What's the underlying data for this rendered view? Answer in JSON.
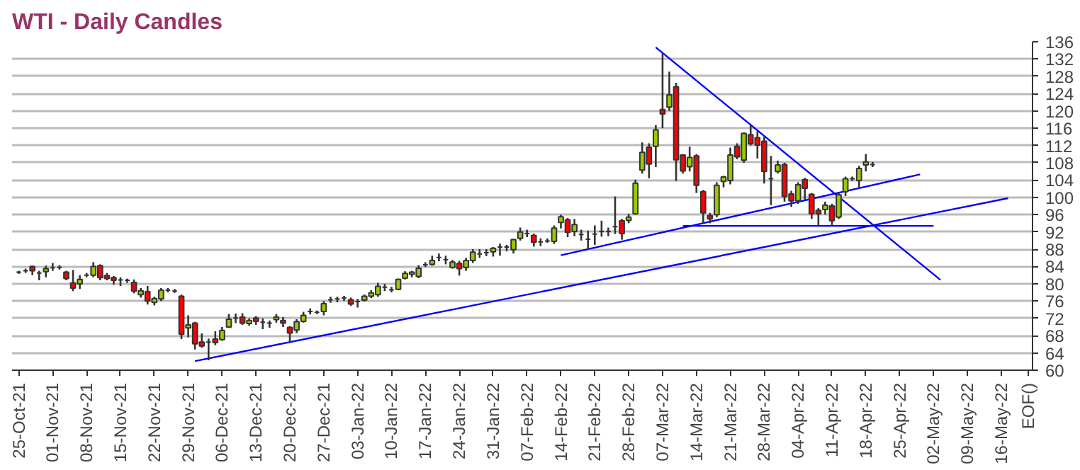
{
  "chart_data": {
    "type": "candlestick",
    "title": "WTI - Daily Candles",
    "ohlc": [
      [
        82.7,
        83,
        82.3,
        82.7
      ],
      [
        83,
        83.5,
        82.5,
        83
      ],
      [
        84,
        84.2,
        82,
        83
      ],
      [
        82.5,
        83,
        80.8,
        82.5
      ],
      [
        82.8,
        84.2,
        81.5,
        83.5
      ],
      [
        83.7,
        84.8,
        83,
        83.7
      ],
      [
        83.8,
        84.3,
        83.3,
        83.8
      ],
      [
        82.7,
        83,
        80.8,
        81.2
      ],
      [
        80.2,
        83.2,
        78.3,
        79
      ],
      [
        80,
        82,
        78.8,
        81
      ],
      [
        82,
        82.5,
        81.5,
        82
      ],
      [
        82,
        85,
        81.5,
        84
      ],
      [
        84.2,
        84.5,
        80.8,
        81.4
      ],
      [
        81.9,
        82.5,
        80.8,
        81.2
      ],
      [
        81.4,
        81.8,
        79.8,
        80.8
      ],
      [
        80.9,
        81.5,
        79.5,
        80.9
      ],
      [
        80.8,
        81.2,
        80.2,
        80.8
      ],
      [
        80.3,
        81,
        77.8,
        78.3
      ],
      [
        77.5,
        79,
        76.8,
        78.4
      ],
      [
        78.2,
        79.5,
        75.2,
        76
      ],
      [
        75.7,
        77,
        75,
        76.6
      ],
      [
        76.5,
        79,
        76,
        78.5
      ],
      [
        78.5,
        79,
        78,
        78.5
      ],
      [
        78.3,
        78.8,
        77.9,
        78.3
      ],
      [
        77.1,
        77.5,
        67.2,
        68.3
      ],
      [
        69.8,
        72.7,
        67.6,
        70.5
      ],
      [
        70.9,
        71.2,
        64.8,
        66.1
      ],
      [
        66.5,
        68.5,
        65.2,
        65.6
      ],
      [
        66.5,
        67.3,
        62.3,
        66.5
      ],
      [
        67.2,
        69,
        65.8,
        66.4
      ],
      [
        67.1,
        70,
        66.8,
        69.2
      ],
      [
        70,
        73,
        69.8,
        71.8
      ],
      [
        72.1,
        73.1,
        70.9,
        72.1
      ],
      [
        72.3,
        73.2,
        70.5,
        70.9
      ],
      [
        70.8,
        72,
        70.3,
        71.5
      ],
      [
        72.1,
        72.5,
        70.5,
        71.3
      ],
      [
        71.1,
        72,
        69.5,
        71.1
      ],
      [
        70.9,
        71.5,
        69.8,
        70.9
      ],
      [
        71.7,
        73,
        71,
        72.3
      ],
      [
        71.5,
        72.3,
        70,
        70.9
      ],
      [
        69.9,
        70.2,
        66.5,
        68.6
      ],
      [
        69.3,
        71.8,
        68.6,
        71.2
      ],
      [
        71.3,
        73.5,
        71,
        72.7
      ],
      [
        73.6,
        74.3,
        72.9,
        73.6
      ],
      [
        73.4,
        73.8,
        73,
        73.4
      ],
      [
        73.6,
        76,
        72.7,
        75.4
      ],
      [
        76.3,
        77,
        75.6,
        76.3
      ],
      [
        76.5,
        77,
        75.7,
        76.5
      ],
      [
        76.7,
        77.2,
        76,
        76.7
      ],
      [
        76.3,
        76.8,
        74.9,
        75.3
      ],
      [
        75.9,
        76.5,
        74.5,
        75.9
      ],
      [
        76.2,
        77.5,
        75.9,
        77.1
      ],
      [
        77.1,
        78.5,
        76.7,
        77.9
      ],
      [
        77.5,
        80.2,
        77,
        79.4
      ],
      [
        79.2,
        80,
        78.3,
        79.2
      ],
      [
        78.6,
        79.3,
        78,
        78.6
      ],
      [
        78.7,
        81.2,
        78.5,
        81
      ],
      [
        81.3,
        82.9,
        81,
        82.4
      ],
      [
        82.2,
        83,
        81.5,
        82.7
      ],
      [
        81.7,
        84.3,
        81.3,
        83.6
      ],
      [
        84.4,
        85,
        83.9,
        84.4
      ],
      [
        84.5,
        86.5,
        84.2,
        85.4
      ],
      [
        86.1,
        87,
        85.2,
        86.1
      ],
      [
        85.6,
        86.5,
        84.5,
        85.6
      ],
      [
        83.8,
        85.5,
        83.5,
        85
      ],
      [
        84.7,
        85.3,
        81.9,
        83.5
      ],
      [
        83.8,
        86,
        83,
        85.4
      ],
      [
        85.4,
        88,
        84.8,
        87.3
      ],
      [
        86.9,
        88,
        86,
        86.9
      ],
      [
        87.2,
        88,
        86.4,
        87.2
      ],
      [
        87.4,
        88.5,
        86.3,
        88.2
      ],
      [
        88.5,
        89.3,
        86.5,
        88.5
      ],
      [
        88.5,
        89,
        87.5,
        88.5
      ],
      [
        87.9,
        90.4,
        87,
        90.2
      ],
      [
        90.5,
        93,
        90,
        92
      ],
      [
        91.6,
        92.5,
        90.8,
        91.6
      ],
      [
        91.2,
        91.6,
        88.6,
        89.6
      ],
      [
        89.7,
        90.5,
        88.7,
        89.7
      ],
      [
        89.9,
        90.5,
        89.5,
        89.9
      ],
      [
        89.8,
        93.5,
        89.2,
        92.9
      ],
      [
        94.2,
        96,
        92.8,
        95.5
      ],
      [
        94.8,
        95.2,
        90.8,
        91.9
      ],
      [
        92.1,
        95,
        91,
        93.7
      ],
      [
        91.4,
        92.5,
        90,
        91.4
      ],
      [
        90.3,
        92.3,
        87.9,
        90.3
      ],
      [
        91.5,
        93.5,
        89,
        91.5
      ],
      [
        92.1,
        94.6,
        90.9,
        92.1
      ],
      [
        92.1,
        93,
        91,
        92.1
      ],
      [
        93.2,
        100.2,
        91.5,
        93.2
      ],
      [
        94.6,
        95,
        90.2,
        91.6
      ],
      [
        94.7,
        96.2,
        94,
        95.4
      ],
      [
        96.2,
        104.1,
        96,
        103.3
      ],
      [
        106.3,
        112.7,
        105.5,
        110.4
      ],
      [
        111.6,
        112.5,
        104.4,
        107.7
      ],
      [
        111.8,
        116.7,
        107,
        115.6
      ],
      [
        120.3,
        133.3,
        116,
        119.3
      ],
      [
        120.9,
        129.1,
        120,
        123.7
      ],
      [
        125.6,
        126.5,
        103.8,
        108.7
      ],
      [
        109.8,
        110,
        105.5,
        106.1
      ],
      [
        107.1,
        111.7,
        106,
        109.2
      ],
      [
        109.6,
        110,
        101,
        102.8
      ],
      [
        101.3,
        101.7,
        94,
        96.4
      ],
      [
        95.8,
        96.4,
        94,
        95
      ],
      [
        96,
        103.5,
        95.4,
        102.8
      ],
      [
        103.7,
        105,
        102.3,
        104.7
      ],
      [
        103.9,
        111.5,
        103,
        109.8
      ],
      [
        111.8,
        112.5,
        108.8,
        109.4
      ],
      [
        108.6,
        115,
        108,
        114.8
      ],
      [
        114.5,
        116.7,
        112,
        112.4
      ],
      [
        113.8,
        115.3,
        109,
        112.1
      ],
      [
        113,
        114,
        103.2,
        106
      ],
      [
        104.3,
        109.6,
        98.2,
        104.3
      ],
      [
        106,
        108.5,
        105.5,
        107.5
      ],
      [
        107.6,
        108,
        99,
        100.2
      ],
      [
        100.8,
        101.5,
        97.8,
        99.2
      ],
      [
        99.2,
        103.5,
        98.5,
        102.9
      ],
      [
        104.1,
        104.5,
        99.5,
        102.1
      ],
      [
        100.7,
        101,
        95,
        96.2
      ],
      [
        97,
        97.5,
        93.5,
        96.2
      ],
      [
        97.2,
        99,
        96,
        98.2
      ],
      [
        98,
        98.5,
        93.3,
        94.6
      ],
      [
        95.4,
        101,
        95,
        100.6
      ],
      [
        101.3,
        104.8,
        100.3,
        104.3
      ],
      [
        104.3,
        104.8,
        103.8,
        104.3
      ],
      [
        103.9,
        107.3,
        102.3,
        106.7
      ],
      [
        107.5,
        110,
        106,
        108.2
      ],
      [
        107.6,
        108.2,
        107,
        107.6
      ],
      null,
      null,
      null,
      null,
      null,
      null,
      null,
      null,
      null,
      null,
      null,
      null,
      null,
      null,
      null,
      null,
      null,
      null,
      null,
      null,
      null,
      null,
      null
    ],
    "colors": [
      "#333333",
      "#333333",
      "#ff0000",
      "#333333",
      "#99cc00",
      "#333333",
      "#333333",
      "#ff0000",
      "#ff0000",
      "#99cc00",
      "#333333",
      "#99cc00",
      "#ff0000",
      "#ff0000",
      "#ff0000",
      "#333333",
      "#333333",
      "#ff0000",
      "#99cc00",
      "#ff0000",
      "#99cc00",
      "#99cc00",
      "#333333",
      "#333333",
      "#ff0000",
      "#99cc00",
      "#ff0000",
      "#ff0000",
      "#333333",
      "#ff0000",
      "#99cc00",
      "#99cc00",
      "#333333",
      "#ff0000",
      "#99cc00",
      "#ff0000",
      "#333333",
      "#333333",
      "#99cc00",
      "#ff0000",
      "#ff0000",
      "#99cc00",
      "#99cc00",
      "#333333",
      "#333333",
      "#99cc00",
      "#333333",
      "#333333",
      "#333333",
      "#ff0000",
      "#333333",
      "#99cc00",
      "#99cc00",
      "#99cc00",
      "#333333",
      "#333333",
      "#99cc00",
      "#99cc00",
      "#99cc00",
      "#99cc00",
      "#333333",
      "#99cc00",
      "#333333",
      "#333333",
      "#99cc00",
      "#ff0000",
      "#99cc00",
      "#99cc00",
      "#333333",
      "#333333",
      "#99cc00",
      "#333333",
      "#333333",
      "#99cc00",
      "#99cc00",
      "#333333",
      "#ff0000",
      "#333333",
      "#333333",
      "#99cc00",
      "#99cc00",
      "#ff0000",
      "#99cc00",
      "#333333",
      "#333333",
      "#333333",
      "#333333",
      "#333333",
      "#333333",
      "#ff0000",
      "#99cc00",
      "#99cc00",
      "#99cc00",
      "#ff0000",
      "#99cc00",
      "#ff0000",
      "#99cc00",
      "#ff0000",
      "#ff0000",
      "#99cc00",
      "#ff0000",
      "#ff0000",
      "#ff0000",
      "#99cc00",
      "#99cc00",
      "#99cc00",
      "#ff0000",
      "#99cc00",
      "#ff0000",
      "#ff0000",
      "#ff0000",
      "#333333",
      "#99cc00",
      "#ff0000",
      "#ff0000",
      "#99cc00",
      "#ff0000",
      "#ff0000",
      "#ff0000",
      "#99cc00",
      "#ff0000",
      "#99cc00",
      "#99cc00",
      "#333333",
      "#99cc00",
      "#99cc00",
      "#333333",
      null,
      null,
      null,
      null,
      null,
      null,
      null,
      null,
      null,
      null,
      null,
      null,
      null,
      null,
      null,
      null,
      null,
      null,
      null,
      null,
      null,
      null,
      null
    ],
    "series": [
      {
        "type": "line",
        "color": "#0000ff",
        "values": [
          null,
          null,
          null,
          null,
          null,
          null,
          null,
          null,
          null,
          null,
          null,
          null,
          null,
          null,
          null,
          null,
          null,
          null,
          null,
          null,
          null,
          null,
          null,
          null,
          null,
          null,
          62.1,
          null,
          null,
          null,
          null,
          null,
          null,
          null,
          null,
          null,
          null,
          null,
          null,
          null,
          null,
          null,
          null,
          null,
          null,
          null,
          null,
          null,
          null,
          null,
          null,
          null,
          null,
          null,
          null,
          null,
          null,
          null,
          null,
          null,
          null,
          null,
          null,
          null,
          null,
          null,
          null,
          null,
          null,
          null,
          null,
          null,
          null,
          null,
          null,
          null,
          null,
          null,
          null,
          null,
          null,
          null,
          null,
          null,
          null,
          null,
          null,
          null,
          null,
          null,
          null,
          null,
          null,
          null,
          null,
          null,
          null,
          null,
          null,
          null,
          null,
          null,
          null,
          null,
          null,
          null,
          null,
          null,
          null,
          null,
          null,
          null,
          null,
          null,
          null,
          null,
          null,
          null,
          null,
          null,
          null,
          null,
          null,
          null,
          null,
          null,
          null,
          null,
          null,
          null,
          null,
          null,
          null,
          null,
          null,
          null,
          null,
          null,
          null,
          null,
          null,
          null,
          null,
          null,
          null,
          null,
          99.8,
          null,
          null,
          null
        ]
      },
      {
        "type": "line",
        "color": "#0000ff",
        "values": [
          null,
          null,
          null,
          null,
          null,
          null,
          null,
          null,
          null,
          null,
          null,
          null,
          null,
          null,
          null,
          null,
          null,
          null,
          null,
          null,
          null,
          null,
          null,
          null,
          null,
          null,
          null,
          null,
          null,
          null,
          null,
          null,
          null,
          null,
          null,
          null,
          null,
          null,
          null,
          null,
          null,
          null,
          null,
          null,
          null,
          null,
          null,
          null,
          null,
          null,
          null,
          null,
          null,
          null,
          null,
          null,
          null,
          null,
          null,
          null,
          null,
          null,
          null,
          null,
          null,
          null,
          null,
          null,
          null,
          null,
          null,
          null,
          null,
          null,
          null,
          null,
          null,
          null,
          null,
          null,
          86.6,
          null,
          null,
          null,
          null,
          null,
          null,
          null,
          null,
          null,
          null,
          null,
          null,
          null,
          null,
          null,
          null,
          null,
          null,
          null,
          null,
          null,
          null,
          null,
          null,
          null,
          null,
          null,
          null,
          null,
          null,
          null,
          null,
          null,
          null,
          null,
          null,
          null,
          null,
          null,
          null,
          null,
          null,
          null,
          null,
          null,
          null,
          null,
          null,
          null,
          null,
          null,
          null,
          105.3,
          null,
          null,
          null,
          null,
          null,
          null,
          null,
          null,
          null,
          null,
          null,
          null,
          null,
          null,
          null,
          null
        ]
      },
      {
        "type": "line",
        "color": "#0000ff",
        "values": [
          null,
          null,
          null,
          null,
          null,
          null,
          null,
          null,
          null,
          null,
          null,
          null,
          null,
          null,
          null,
          null,
          null,
          null,
          null,
          null,
          null,
          null,
          null,
          null,
          null,
          null,
          null,
          null,
          null,
          null,
          null,
          null,
          null,
          null,
          null,
          null,
          null,
          null,
          null,
          null,
          null,
          null,
          null,
          null,
          null,
          null,
          null,
          null,
          null,
          null,
          null,
          null,
          null,
          null,
          null,
          null,
          null,
          null,
          null,
          null,
          null,
          null,
          null,
          null,
          null,
          null,
          null,
          null,
          null,
          null,
          null,
          null,
          null,
          null,
          null,
          null,
          null,
          null,
          null,
          null,
          null,
          null,
          null,
          null,
          null,
          null,
          null,
          null,
          null,
          null,
          null,
          null,
          null,
          null,
          134.7,
          null,
          null,
          null,
          null,
          null,
          null,
          null,
          null,
          null,
          null,
          null,
          null,
          null,
          null,
          null,
          null,
          null,
          null,
          null,
          null,
          null,
          null,
          null,
          null,
          null,
          null,
          null,
          null,
          null,
          null,
          null,
          null,
          null,
          null,
          null,
          null,
          null,
          null,
          null,
          null,
          null,
          80.9,
          null,
          null,
          null,
          null,
          null,
          null,
          null,
          null,
          null,
          null,
          null,
          null,
          null
        ]
      },
      {
        "type": "line",
        "color": "#0000ff",
        "values": [
          null,
          null,
          null,
          null,
          null,
          null,
          null,
          null,
          null,
          null,
          null,
          null,
          null,
          null,
          null,
          null,
          null,
          null,
          null,
          null,
          null,
          null,
          null,
          null,
          null,
          null,
          null,
          null,
          null,
          null,
          null,
          null,
          null,
          null,
          null,
          null,
          null,
          null,
          null,
          null,
          null,
          null,
          null,
          null,
          null,
          null,
          null,
          null,
          null,
          null,
          null,
          null,
          null,
          null,
          null,
          null,
          null,
          null,
          null,
          null,
          null,
          null,
          null,
          null,
          null,
          null,
          null,
          null,
          null,
          null,
          null,
          null,
          null,
          null,
          null,
          null,
          null,
          null,
          null,
          null,
          null,
          null,
          null,
          null,
          null,
          null,
          null,
          null,
          null,
          null,
          null,
          null,
          null,
          null,
          null,
          null,
          null,
          null,
          93.4,
          null,
          null,
          null,
          null,
          null,
          null,
          null,
          null,
          null,
          null,
          null,
          null,
          null,
          null,
          null,
          null,
          null,
          null,
          null,
          null,
          null,
          null,
          null,
          null,
          null,
          null,
          null,
          null,
          null,
          null,
          null,
          null,
          null,
          null,
          null,
          null,
          93.4,
          null,
          null,
          null,
          null,
          null,
          null,
          null,
          null,
          null,
          null,
          null,
          null,
          null,
          null
        ]
      }
    ],
    "categories": [
      "25-Oct-21",
      null,
      null,
      null,
      null,
      "01-Nov-21",
      null,
      null,
      null,
      null,
      "08-Nov-21",
      null,
      null,
      null,
      null,
      "15-Nov-21",
      null,
      null,
      null,
      null,
      "22-Nov-21",
      null,
      null,
      null,
      null,
      "29-Nov-21",
      null,
      null,
      null,
      null,
      "06-Dec-21",
      null,
      null,
      null,
      null,
      "13-Dec-21",
      null,
      null,
      null,
      null,
      "20-Dec-21",
      null,
      null,
      null,
      null,
      "27-Dec-21",
      null,
      null,
      null,
      null,
      "03-Jan-22",
      null,
      null,
      null,
      null,
      "10-Jan-22",
      null,
      null,
      null,
      null,
      "17-Jan-22",
      null,
      null,
      null,
      null,
      "24-Jan-22",
      null,
      null,
      null,
      null,
      "31-Jan-22",
      null,
      null,
      null,
      null,
      "07-Feb-22",
      null,
      null,
      null,
      null,
      "14-Feb-22",
      null,
      null,
      null,
      null,
      "21-Feb-22",
      null,
      null,
      null,
      null,
      "28-Feb-22",
      null,
      null,
      null,
      null,
      "07-Mar-22",
      null,
      null,
      null,
      null,
      "14-Mar-22",
      null,
      null,
      null,
      null,
      "21-Mar-22",
      null,
      null,
      null,
      null,
      "28-Mar-22",
      null,
      null,
      null,
      null,
      "04-Apr-22",
      null,
      null,
      null,
      null,
      "11-Apr-22",
      null,
      null,
      null,
      null,
      "18-Apr-22",
      null,
      null,
      null,
      null,
      "25-Apr-22",
      null,
      null,
      null,
      null,
      "02-May-22",
      null,
      null,
      null,
      null,
      "09-May-22",
      null,
      null,
      null,
      null,
      "16-May-22",
      null,
      null,
      null,
      "EOF()"
    ],
    "ylim": [
      60,
      136
    ],
    "yticks": [
      60,
      64,
      68,
      72,
      76,
      80,
      84,
      88,
      92,
      96,
      100,
      104,
      108,
      112,
      116,
      120,
      124,
      128,
      132,
      136
    ],
    "grid": "y"
  }
}
